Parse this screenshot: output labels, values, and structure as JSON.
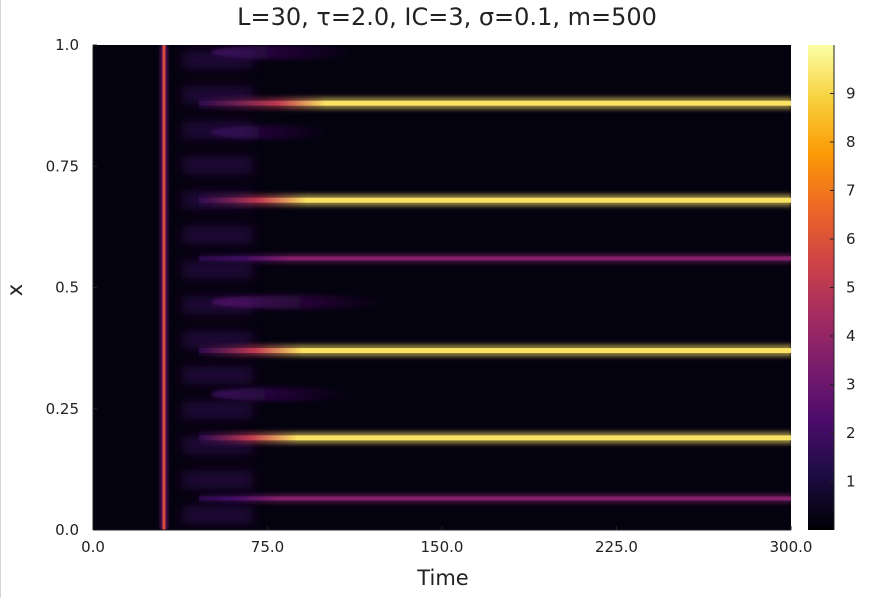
{
  "chart_data": {
    "type": "heatmap",
    "title": "L=30, τ=2.0, IC=3, σ=0.1, m=500",
    "xlabel": "Time",
    "ylabel": "x",
    "xlim": [
      0,
      300
    ],
    "ylim": [
      0,
      1
    ],
    "x_ticks": [
      "0.0",
      "75.0",
      "150.0",
      "225.0",
      "300.0"
    ],
    "x_tick_values": [
      0,
      75,
      150,
      225,
      300
    ],
    "y_ticks": [
      "0.0",
      "0.25",
      "0.5",
      "0.75",
      "1.0"
    ],
    "y_tick_values": [
      0,
      0.25,
      0.5,
      0.75,
      1.0
    ],
    "colorbar": {
      "colormap": "inferno",
      "range": [
        0,
        10
      ],
      "ticks": [
        "1",
        "2",
        "3",
        "4",
        "5",
        "6",
        "7",
        "8",
        "9"
      ],
      "tick_values": [
        1,
        2,
        3,
        4,
        5,
        6,
        7,
        8,
        9
      ]
    },
    "background_value": 0.2,
    "vertical_band": {
      "time": 30.5,
      "value": 5.8
    },
    "steady_stripes": [
      {
        "x": 0.88,
        "value": 9.3,
        "onset_time": 100
      },
      {
        "x": 0.68,
        "value": 9.3,
        "onset_time": 92
      },
      {
        "x": 0.56,
        "value": 3.6,
        "onset_time": 85
      },
      {
        "x": 0.37,
        "value": 9.3,
        "onset_time": 90
      },
      {
        "x": 0.19,
        "value": 9.3,
        "onset_time": 88
      },
      {
        "x": 0.065,
        "value": 3.6,
        "onset_time": 80
      }
    ],
    "transient_streaks": [
      {
        "x": 0.985,
        "value": 2.0,
        "end_time": 112
      },
      {
        "x": 0.82,
        "value": 1.8,
        "end_time": 102
      },
      {
        "x": 0.47,
        "value": 2.4,
        "end_time": 125
      },
      {
        "x": 0.28,
        "value": 2.0,
        "end_time": 110
      }
    ],
    "grid": false,
    "legend": "colorbar-right"
  },
  "colors": {
    "background": "#000004",
    "axis": "#222222",
    "colormap_stops": [
      "#000004",
      "#1b0c41",
      "#4a0c6b",
      "#781c6d",
      "#a52c60",
      "#cf4446",
      "#ed6925",
      "#fb9b06",
      "#f7d13d",
      "#fcffa4"
    ]
  }
}
